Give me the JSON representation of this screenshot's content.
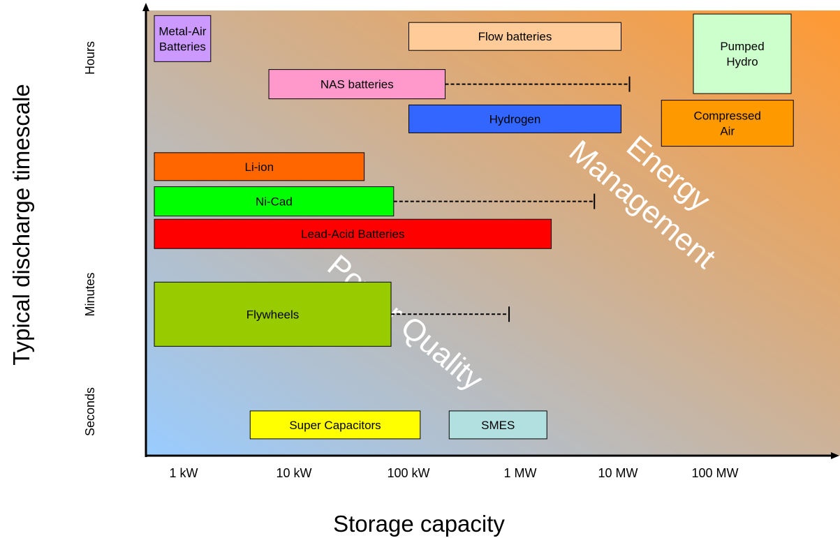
{
  "chart_data": {
    "type": "range_bar",
    "xlabel": "Storage capacity",
    "ylabel": "Typical discharge timescale",
    "x_ticks": [
      "1 kW",
      "10 kW",
      "100 kW",
      "1 MW",
      "10 MW",
      "100 MW"
    ],
    "y_ticks": [
      "Seconds",
      "Minutes",
      "Hours"
    ],
    "x_scale": "log",
    "series": [
      {
        "label": "Metal-Air Batteries",
        "lines": [
          "Metal-Air",
          "Batteries"
        ],
        "x_min_kw": 1,
        "x_max_kw": 3.4,
        "y_level": 0.94,
        "color": "#cc99ff"
      },
      {
        "label": "Flow batteries",
        "lines": [
          "Flow batteries"
        ],
        "x_min_kw": 250,
        "x_max_kw": 25000,
        "y_level": 0.945,
        "color": "#ffcc99"
      },
      {
        "label": "Pumped Hydro",
        "lines": [
          "Pumped",
          "Hydro"
        ],
        "x_min_kw": 120000,
        "x_max_kw": 1000000,
        "y_level": 0.905,
        "color": "#ccffcc"
      },
      {
        "label": "NAS batteries",
        "lines": [
          "NAS batteries"
        ],
        "x_min_kw": 12,
        "x_max_kw": 550,
        "extension_kw": 30000,
        "y_level": 0.835,
        "color": "#ff99cc"
      },
      {
        "label": "Hydrogen",
        "lines": [
          "Hydrogen"
        ],
        "x_min_kw": 250,
        "x_max_kw": 25000,
        "y_level": 0.755,
        "color": "#3366ff"
      },
      {
        "label": "Compressed Air",
        "lines": [
          "Compressed",
          "Air"
        ],
        "x_min_kw": 60000,
        "x_max_kw": 1050000,
        "y_level": 0.745,
        "color": "#ff9900"
      },
      {
        "label": "Li-ion",
        "lines": [
          "Li-ion"
        ],
        "x_min_kw": 1,
        "x_max_kw": 95,
        "y_level": 0.645,
        "color": "#ff6600"
      },
      {
        "label": "Ni-Cad",
        "lines": [
          "Ni-Cad"
        ],
        "x_min_kw": 1,
        "x_max_kw": 180,
        "extension_kw": 14000,
        "y_level": 0.565,
        "color": "#00ff00"
      },
      {
        "label": "Lead-Acid Batteries",
        "lines": [
          "Lead-Acid Batteries"
        ],
        "x_min_kw": 1,
        "x_max_kw": 5500,
        "y_level": 0.49,
        "color": "#ff0000"
      },
      {
        "label": "Flywheels",
        "lines": [
          "Flywheels"
        ],
        "x_min_kw": 1,
        "x_max_kw": 170,
        "extension_kw": 2200,
        "y_level": 0.305,
        "color": "#99cc00"
      },
      {
        "label": "Super Capacitors",
        "lines": [
          "Super Capacitors"
        ],
        "x_min_kw": 8,
        "x_max_kw": 320,
        "y_level": 0.05,
        "color": "#ffff00"
      },
      {
        "label": "SMES",
        "lines": [
          "SMES"
        ],
        "x_min_kw": 600,
        "x_max_kw": 5000,
        "y_level": 0.05,
        "color": "#b2e0e0"
      }
    ],
    "annotations": [
      {
        "text": "Energy Management",
        "lines": [
          "Energy",
          "Management"
        ],
        "region": "upper-right"
      },
      {
        "text": "Power Quality",
        "lines": [
          "Power Quality"
        ],
        "region": "center"
      }
    ],
    "background": {
      "style": "gradient",
      "colors": [
        "#99ccff",
        "#ff9933"
      ]
    },
    "grid": false,
    "legend": "none"
  }
}
